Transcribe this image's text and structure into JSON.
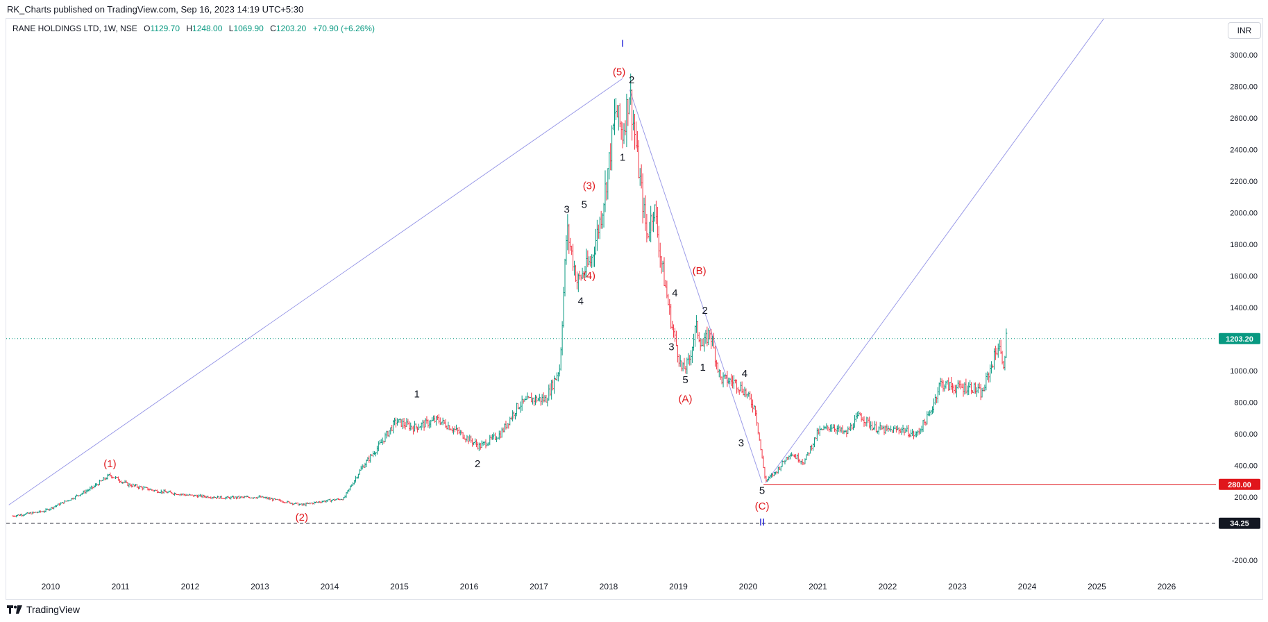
{
  "published_line": "RK_Charts published on TradingView.com, Sep 16, 2023 14:19 UTC+5:30",
  "legend": {
    "symbol": "RANE HOLDINGS LTD, 1W, NSE",
    "o_label": "O",
    "o_value": "1129.70",
    "h_label": "H",
    "h_value": "1248.00",
    "l_label": "L",
    "l_value": "1069.90",
    "c_label": "C",
    "c_value": "1203.20",
    "change": "+70.90 (+6.26%)"
  },
  "currency_button": "INR",
  "brand": "TradingView",
  "colors": {
    "up": "#089981",
    "down": "#f23645",
    "wave_red": "#e0161b",
    "wave_blue": "#1a1ad6",
    "trendline": "#9c9ce8",
    "last_price_bg": "#089981",
    "support_line": "#e0161b"
  },
  "chart_data": {
    "type": "candlestick",
    "interval": "1W",
    "x_axis_years": [
      "2010",
      "2011",
      "2012",
      "2013",
      "2014",
      "2015",
      "2016",
      "2017",
      "2018",
      "2019",
      "2020",
      "2021",
      "2022",
      "2023",
      "2024",
      "2025",
      "2026"
    ],
    "y_ticks": [
      "3000.00",
      "2800.00",
      "2600.00",
      "2400.00",
      "2200.00",
      "2000.00",
      "1800.00",
      "1600.00",
      "1400.00",
      "1000.00",
      "800.00",
      "600.00",
      "400.00",
      "200.00",
      "-200.00"
    ],
    "ylim": [
      -300,
      3150
    ],
    "price_path": [
      [
        2009.45,
        80
      ],
      [
        2009.9,
        110
      ],
      [
        2010.3,
        190
      ],
      [
        2010.6,
        260
      ],
      [
        2010.85,
        340
      ],
      [
        2011.1,
        280
      ],
      [
        2011.5,
        240
      ],
      [
        2012.0,
        210
      ],
      [
        2012.5,
        195
      ],
      [
        2013.0,
        200
      ],
      [
        2013.3,
        175
      ],
      [
        2013.6,
        150
      ],
      [
        2013.85,
        170
      ],
      [
        2014.2,
        190
      ],
      [
        2014.45,
        380
      ],
      [
        2014.7,
        520
      ],
      [
        2014.95,
        680
      ],
      [
        2015.2,
        640
      ],
      [
        2015.55,
        690
      ],
      [
        2015.85,
        610
      ],
      [
        2016.15,
        520
      ],
      [
        2016.45,
        600
      ],
      [
        2016.7,
        780
      ],
      [
        2016.9,
        820
      ],
      [
        2017.1,
        820
      ],
      [
        2017.3,
        1020
      ],
      [
        2017.4,
        1900
      ],
      [
        2017.55,
        1560
      ],
      [
        2017.75,
        1700
      ],
      [
        2017.9,
        2000
      ],
      [
        2018.0,
        2300
      ],
      [
        2018.1,
        2650
      ],
      [
        2018.2,
        2500
      ],
      [
        2018.3,
        2780
      ],
      [
        2018.45,
        2200
      ],
      [
        2018.55,
        1850
      ],
      [
        2018.65,
        2050
      ],
      [
        2018.75,
        1700
      ],
      [
        2018.9,
        1300
      ],
      [
        2019.05,
        1000
      ],
      [
        2019.15,
        1050
      ],
      [
        2019.25,
        1280
      ],
      [
        2019.35,
        1150
      ],
      [
        2019.45,
        1250
      ],
      [
        2019.6,
        950
      ],
      [
        2019.8,
        930
      ],
      [
        2019.95,
        870
      ],
      [
        2020.1,
        760
      ],
      [
        2020.2,
        440
      ],
      [
        2020.25,
        300
      ],
      [
        2020.4,
        360
      ],
      [
        2020.6,
        480
      ],
      [
        2020.8,
        420
      ],
      [
        2021.0,
        610
      ],
      [
        2021.2,
        650
      ],
      [
        2021.4,
        600
      ],
      [
        2021.6,
        720
      ],
      [
        2021.8,
        640
      ],
      [
        2022.0,
        620
      ],
      [
        2022.2,
        630
      ],
      [
        2022.4,
        590
      ],
      [
        2022.6,
        720
      ],
      [
        2022.75,
        920
      ],
      [
        2023.0,
        890
      ],
      [
        2023.2,
        900
      ],
      [
        2023.35,
        850
      ],
      [
        2023.5,
        1050
      ],
      [
        2023.6,
        1180
      ],
      [
        2023.65,
        1000
      ],
      [
        2023.7,
        1203
      ]
    ],
    "last_price": "1203.20",
    "support_price": "280.00",
    "dashed_price": "34.25",
    "support_line_value": 280,
    "dashed_line_value": 34.25,
    "wave_labels": [
      {
        "text": "I",
        "color": "blue",
        "x": 2018.2,
        "y": 3050
      },
      {
        "text": "(5)",
        "color": "red",
        "x": 2018.15,
        "y": 2870
      },
      {
        "text": "2",
        "color": "black",
        "x": 2018.33,
        "y": 2820
      },
      {
        "text": "1",
        "color": "black",
        "x": 2018.2,
        "y": 2330
      },
      {
        "text": "(3)",
        "color": "red",
        "x": 2017.72,
        "y": 2150
      },
      {
        "text": "3",
        "color": "black",
        "x": 2017.4,
        "y": 2000
      },
      {
        "text": "5",
        "color": "black",
        "x": 2017.65,
        "y": 2030
      },
      {
        "text": "(4)",
        "color": "red",
        "x": 2017.72,
        "y": 1580
      },
      {
        "text": "4",
        "color": "black",
        "x": 2017.6,
        "y": 1420
      },
      {
        "text": "1",
        "color": "black",
        "x": 2015.25,
        "y": 830
      },
      {
        "text": "2",
        "color": "black",
        "x": 2016.12,
        "y": 390
      },
      {
        "text": "(1)",
        "color": "red",
        "x": 2010.85,
        "y": 390
      },
      {
        "text": "(2)",
        "color": "red",
        "x": 2013.6,
        "y": 50
      },
      {
        "text": "(B)",
        "color": "red",
        "x": 2019.3,
        "y": 1610
      },
      {
        "text": "4",
        "color": "black",
        "x": 2018.95,
        "y": 1470
      },
      {
        "text": "2",
        "color": "black",
        "x": 2019.38,
        "y": 1360
      },
      {
        "text": "3",
        "color": "black",
        "x": 2018.9,
        "y": 1130
      },
      {
        "text": "1",
        "color": "black",
        "x": 2019.35,
        "y": 1000
      },
      {
        "text": "5",
        "color": "black",
        "x": 2019.1,
        "y": 920
      },
      {
        "text": "(A)",
        "color": "red",
        "x": 2019.1,
        "y": 800
      },
      {
        "text": "4",
        "color": "black",
        "x": 1999.95,
        "y": 960
      },
      {
        "text": "3",
        "color": "black",
        "x": 2019.9,
        "y": 520
      },
      {
        "text": "5",
        "color": "black",
        "x": 2020.2,
        "y": 220
      },
      {
        "text": "(C)",
        "color": "red",
        "x": 2020.2,
        "y": 120
      },
      {
        "text": "II",
        "color": "blue",
        "x": 2020.2,
        "y": 20
      }
    ],
    "trendlines": [
      [
        [
          2009.4,
          150
        ],
        [
          2018.2,
          2850
        ]
      ],
      [
        [
          2018.3,
          2780
        ],
        [
          2020.2,
          290
        ]
      ],
      [
        [
          2020.25,
          290
        ],
        [
          2025.1,
          3230
        ]
      ]
    ]
  }
}
